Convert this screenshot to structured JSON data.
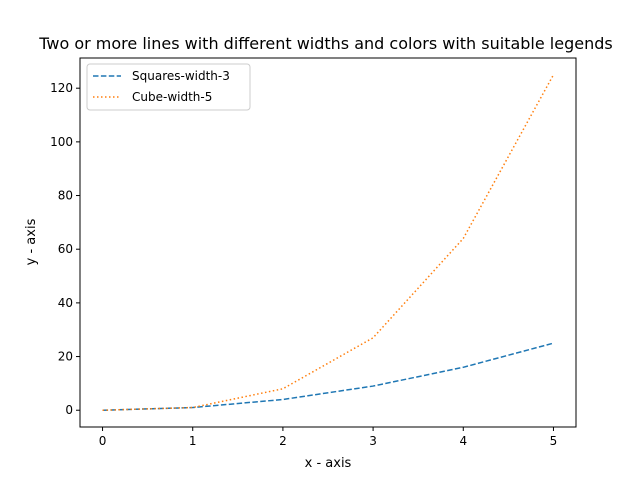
{
  "chart_data": {
    "type": "line",
    "title": "Two or more lines with different widths and colors with suitable legends",
    "xlabel": "x - axis",
    "ylabel": "y - axis",
    "xlim": [
      -0.25,
      5.25
    ],
    "ylim": [
      -6.25,
      131.25
    ],
    "xticks": [
      0,
      1,
      2,
      3,
      4,
      5
    ],
    "yticks": [
      0,
      20,
      40,
      60,
      80,
      100,
      120
    ],
    "grid": false,
    "legend_position": "top-left",
    "x": [
      0,
      1,
      2,
      3,
      4,
      5
    ],
    "series": [
      {
        "name": "Squares-width-3",
        "values": [
          0,
          1,
          4,
          9,
          16,
          25
        ],
        "color": "#1f77b4",
        "style": "dashed"
      },
      {
        "name": "Cube-width-5",
        "values": [
          0,
          1,
          8,
          27,
          64,
          125
        ],
        "color": "#ff7f0e",
        "style": "dotted"
      }
    ]
  }
}
